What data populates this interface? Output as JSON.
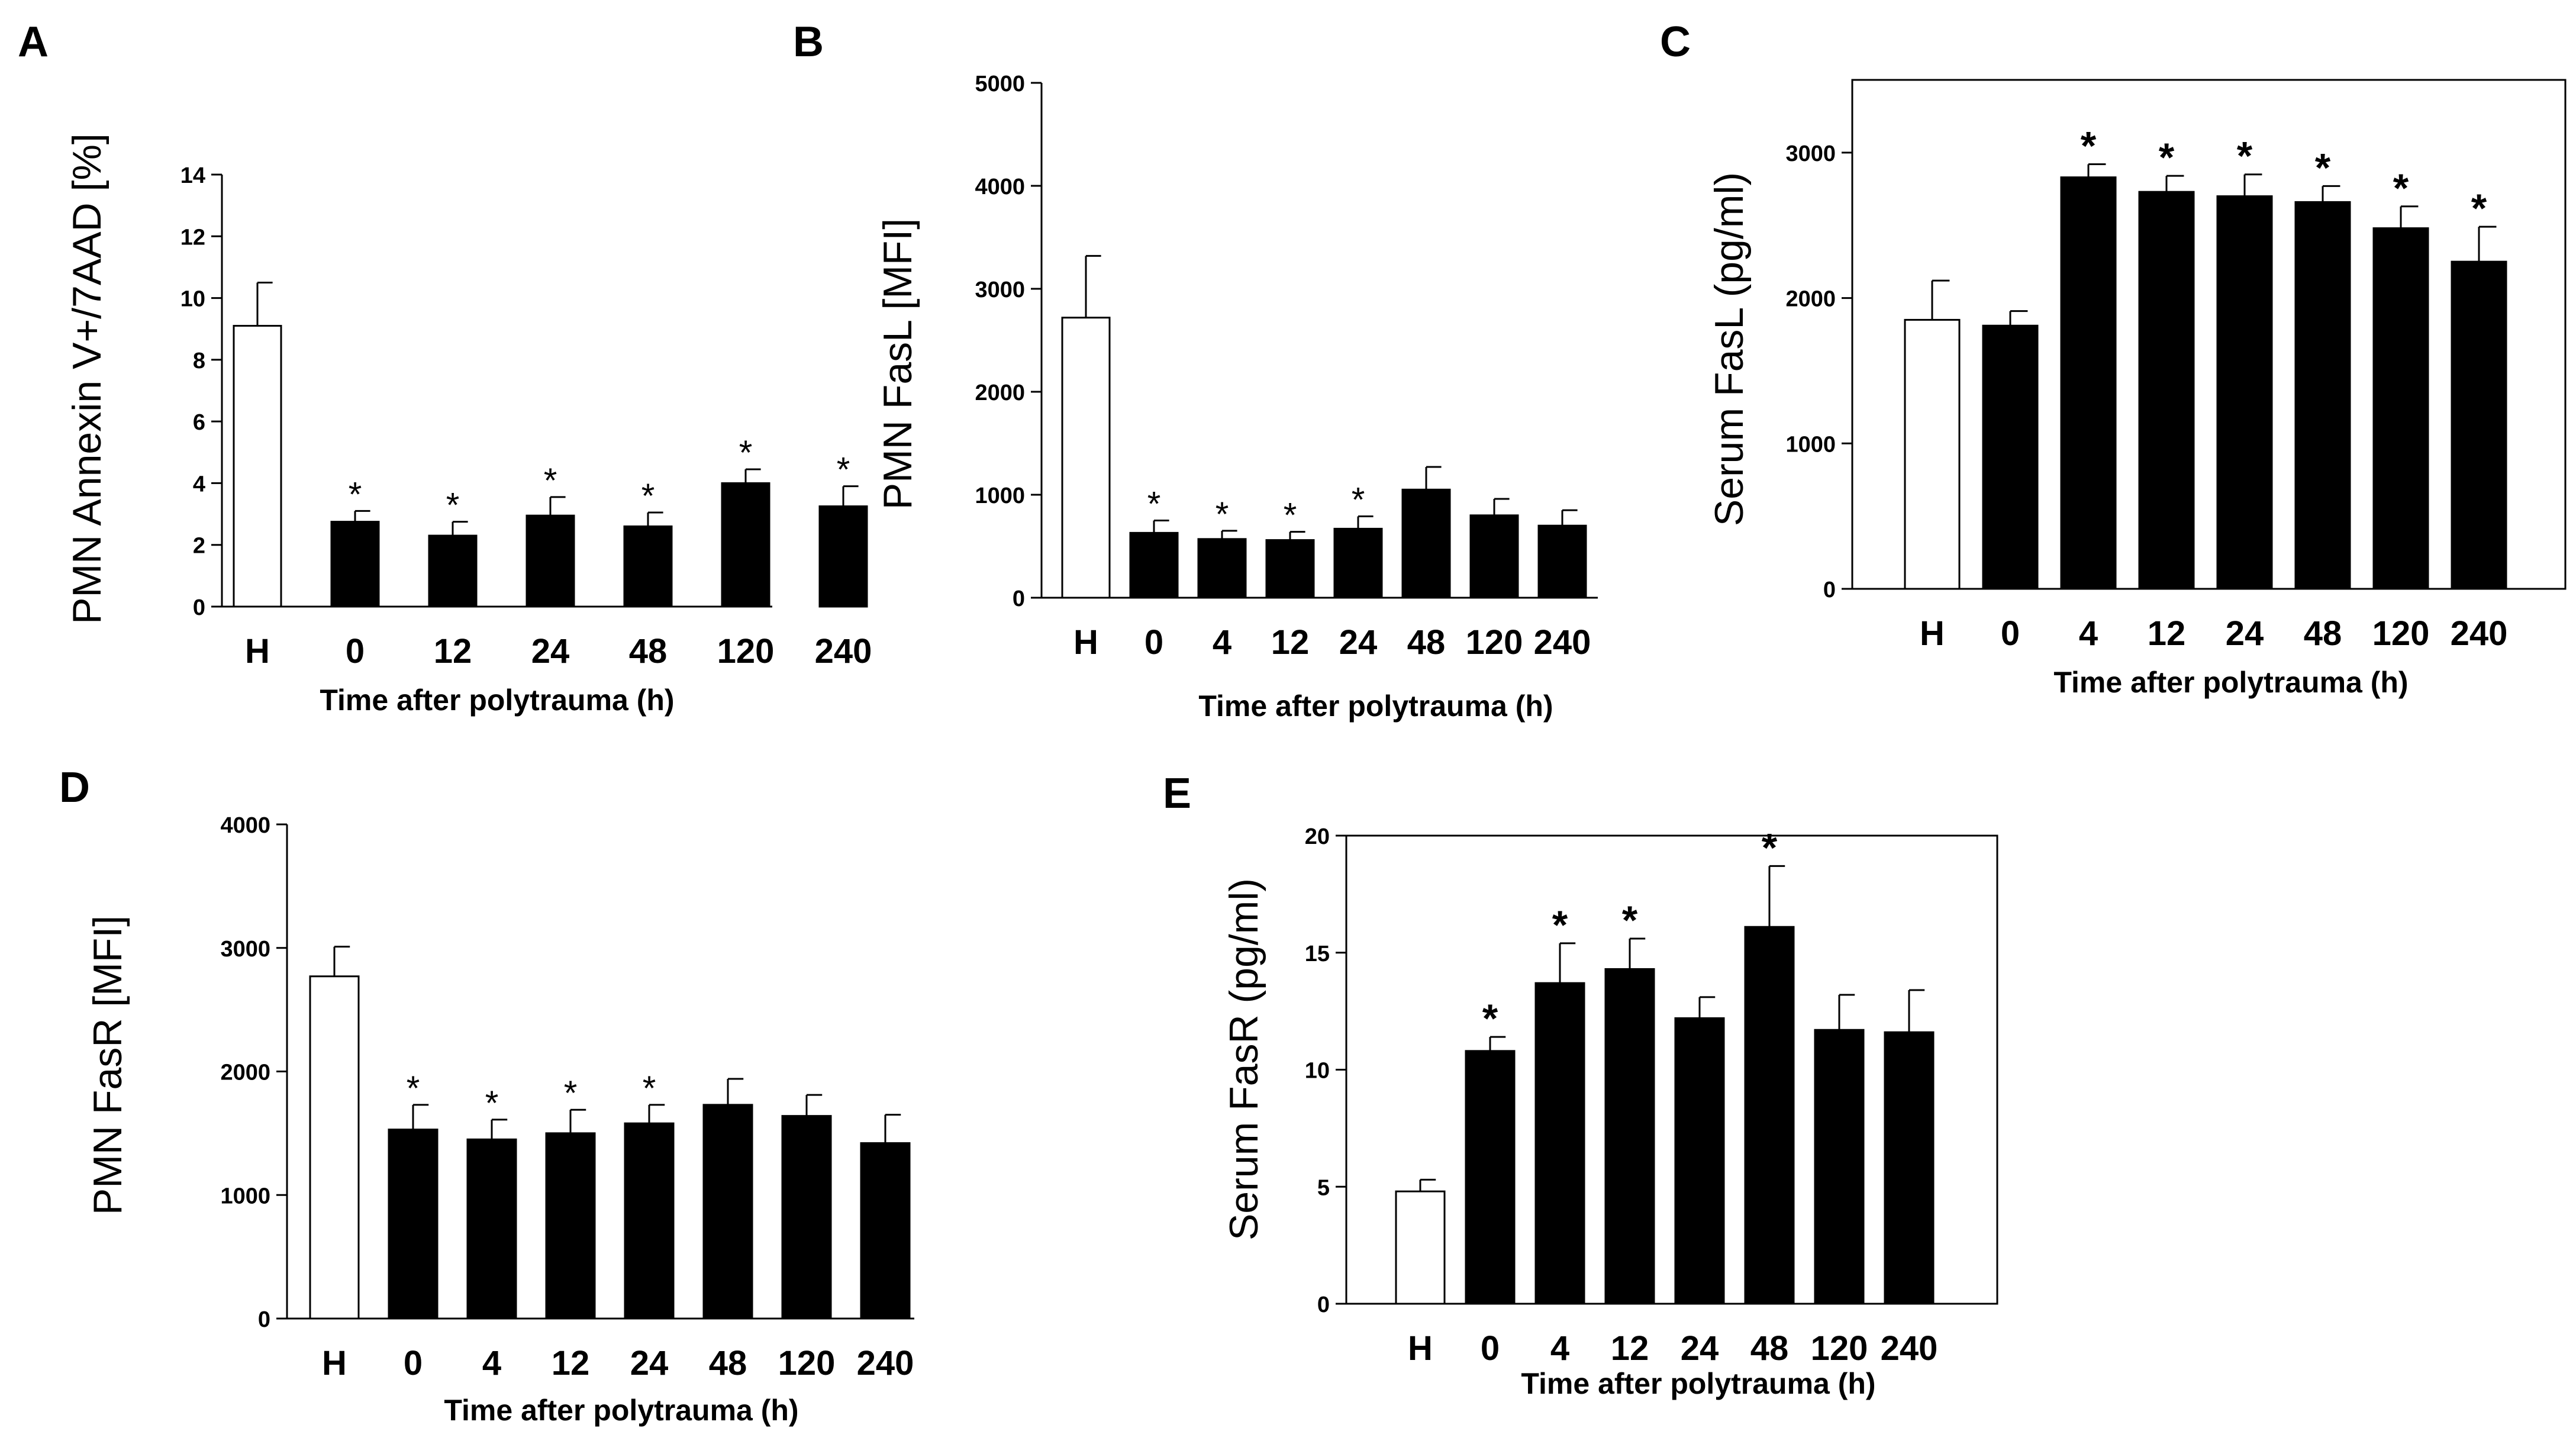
{
  "colors": {
    "filled": "#000000",
    "open": "#ffffff",
    "axis": "#000000"
  },
  "chart_data": [
    {
      "id": "A",
      "panel_label": "A",
      "type": "bar",
      "categories": [
        "H",
        "0",
        "12",
        "24",
        "48",
        "120",
        "240"
      ],
      "values": [
        9.1,
        2.75,
        2.3,
        2.95,
        2.6,
        4.0,
        3.25
      ],
      "errors": [
        1.4,
        0.35,
        0.45,
        0.6,
        0.45,
        0.45,
        0.65
      ],
      "significant": [
        false,
        true,
        true,
        true,
        true,
        true,
        true
      ],
      "fills": [
        "open",
        "filled",
        "filled",
        "filled",
        "filled",
        "filled",
        "filled"
      ],
      "yticks": [
        "0",
        "2",
        "4",
        "6",
        "8",
        "10",
        "12",
        "14"
      ],
      "ylim": [
        0,
        14
      ],
      "xlabel": "Time after polytrauma (h)",
      "ylabel": "PMN Annexin V+/7AAD [%]",
      "boxed": false
    },
    {
      "id": "B",
      "panel_label": "B",
      "type": "bar",
      "categories": [
        "H",
        "0",
        "4",
        "12",
        "24",
        "48",
        "120",
        "240"
      ],
      "values": [
        2720,
        630,
        570,
        560,
        670,
        1050,
        800,
        700
      ],
      "errors": [
        600,
        120,
        80,
        80,
        120,
        220,
        160,
        150
      ],
      "significant": [
        false,
        true,
        true,
        true,
        true,
        false,
        false,
        false
      ],
      "fills": [
        "open",
        "filled",
        "filled",
        "filled",
        "filled",
        "filled",
        "filled",
        "filled"
      ],
      "yticks": [
        "0",
        "1000",
        "2000",
        "3000",
        "4000",
        "5000"
      ],
      "ylim": [
        0,
        5000
      ],
      "xlabel": "Time after polytrauma (h)",
      "ylabel": "PMN FasL [MFI]",
      "boxed": false
    },
    {
      "id": "C",
      "panel_label": "C",
      "type": "bar",
      "categories": [
        "H",
        "0",
        "4",
        "12",
        "24",
        "48",
        "120",
        "240"
      ],
      "values": [
        1850,
        1810,
        2830,
        2730,
        2700,
        2660,
        2480,
        2250
      ],
      "errors": [
        270,
        100,
        90,
        110,
        150,
        110,
        150,
        240
      ],
      "significant": [
        false,
        false,
        true,
        true,
        true,
        true,
        true,
        true
      ],
      "fills": [
        "open",
        "filled",
        "filled",
        "filled",
        "filled",
        "filled",
        "filled",
        "filled"
      ],
      "yticks": [
        "0",
        "1000",
        "2000",
        "3000"
      ],
      "ylim": [
        0,
        3500
      ],
      "xlabel": "Time after polytrauma (h)",
      "ylabel": "Serum FasL (pg/ml)",
      "boxed": true
    },
    {
      "id": "D",
      "panel_label": "D",
      "type": "bar",
      "categories": [
        "H",
        "0",
        "4",
        "12",
        "24",
        "48",
        "120",
        "240"
      ],
      "values": [
        2770,
        1530,
        1450,
        1500,
        1580,
        1730,
        1640,
        1420
      ],
      "errors": [
        240,
        200,
        160,
        190,
        150,
        210,
        170,
        230
      ],
      "significant": [
        false,
        true,
        true,
        true,
        true,
        false,
        false,
        false
      ],
      "fills": [
        "open",
        "filled",
        "filled",
        "filled",
        "filled",
        "filled",
        "filled",
        "filled"
      ],
      "yticks": [
        "0",
        "1000",
        "2000",
        "3000",
        "4000"
      ],
      "ylim": [
        0,
        4000
      ],
      "xlabel": "Time after polytrauma (h)",
      "ylabel": "PMN FasR [MFI]",
      "boxed": false
    },
    {
      "id": "E",
      "panel_label": "E",
      "type": "bar",
      "categories": [
        "H",
        "0",
        "4",
        "12",
        "24",
        "48",
        "120",
        "240"
      ],
      "values": [
        4.8,
        10.8,
        13.7,
        14.3,
        12.2,
        16.1,
        11.7,
        11.6
      ],
      "errors": [
        0.5,
        0.6,
        1.7,
        1.3,
        0.9,
        2.6,
        1.5,
        1.8
      ],
      "significant": [
        false,
        true,
        true,
        true,
        false,
        true,
        false,
        false
      ],
      "fills": [
        "open",
        "filled",
        "filled",
        "filled",
        "filled",
        "filled",
        "filled",
        "filled"
      ],
      "yticks": [
        "0",
        "5",
        "10",
        "15",
        "20"
      ],
      "ylim": [
        0,
        20
      ],
      "xlabel": "Time after polytrauma (h)",
      "ylabel": "Serum FasR (pg/ml)",
      "boxed": true
    }
  ]
}
